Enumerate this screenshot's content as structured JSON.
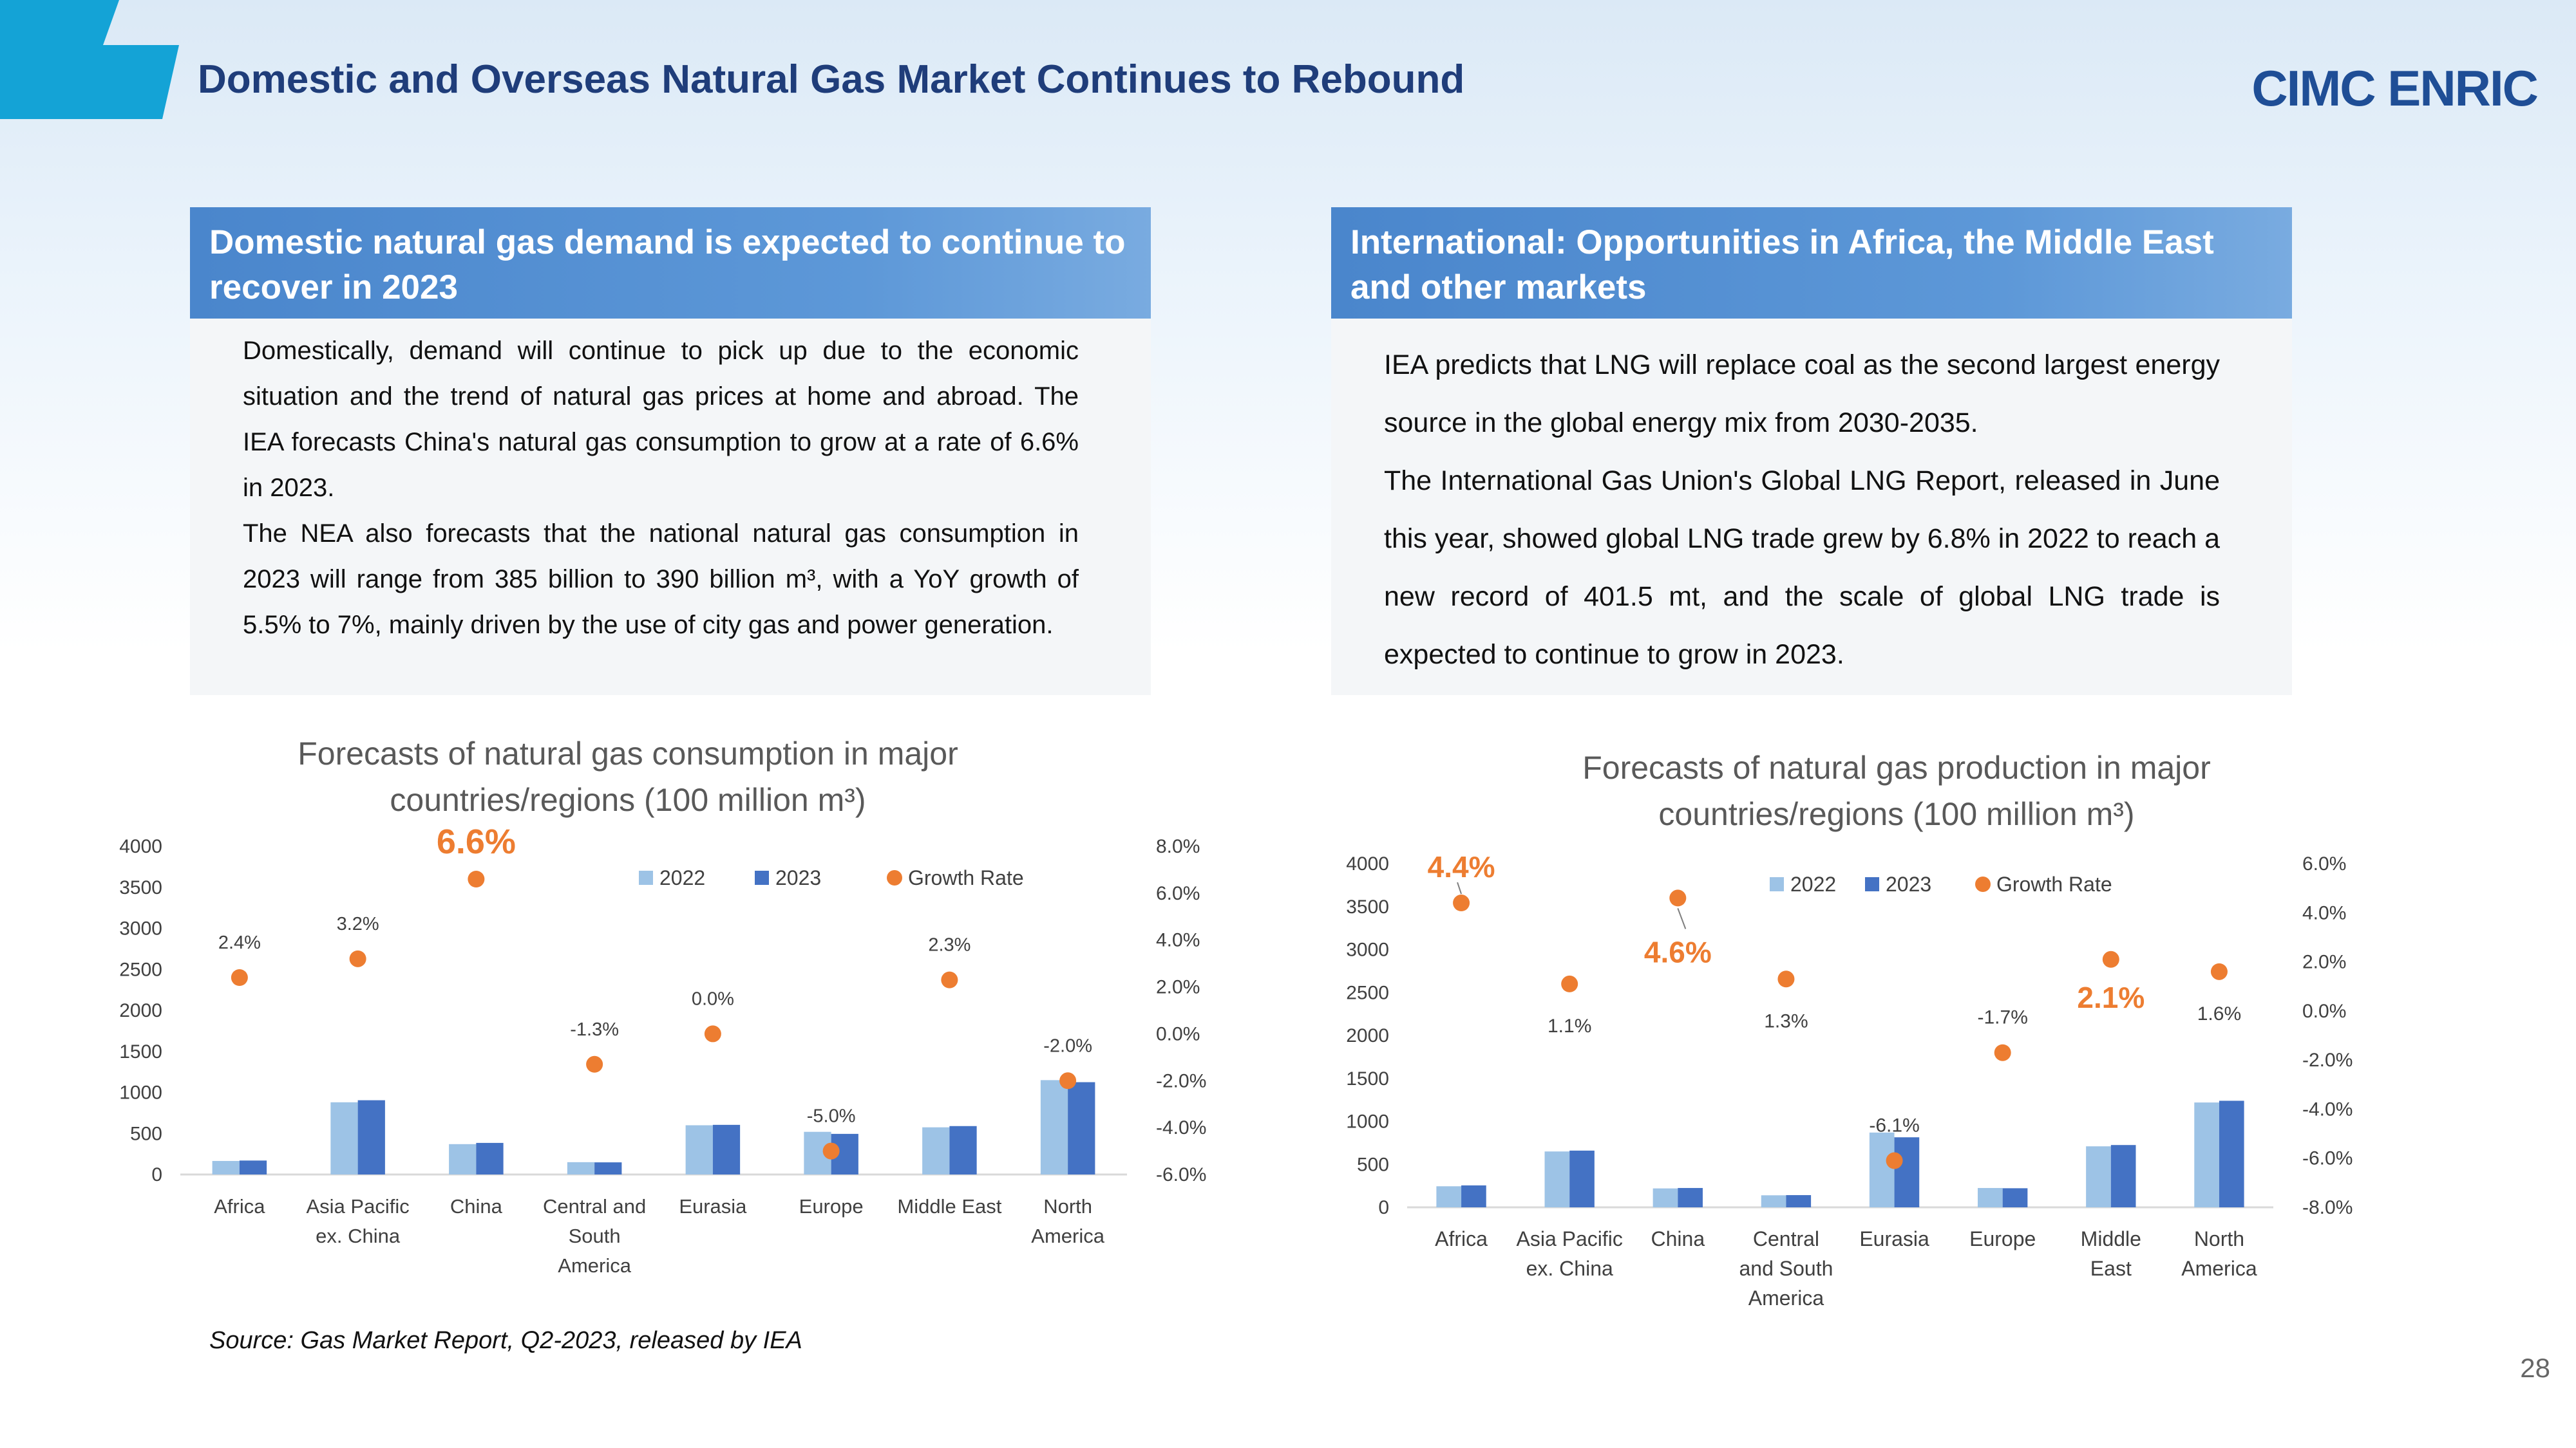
{
  "header": {
    "title": "Domestic and Overseas Natural Gas Market Continues to Rebound",
    "logo_text": "CIMC ENRIC"
  },
  "left_panel": {
    "heading": "Domestic natural gas demand is expected to continue to recover in 2023",
    "paragraphs": [
      "Domestically, demand will continue to pick up due to the economic situation and the trend of natural gas prices at home and abroad. The IEA forecasts China's natural gas consumption to grow at a rate of 6.6% in 2023.",
      "The NEA also forecasts that the national natural gas consumption in 2023 will range from 385 billion to 390 billion m³, with a YoY growth of 5.5% to 7%, mainly driven by the use of city gas and power generation."
    ]
  },
  "right_panel": {
    "heading": "International: Opportunities in Africa, the Middle East and other markets",
    "paragraphs": [
      "IEA predicts that LNG will replace coal as the second largest energy source in the global energy mix from 2030-2035.",
      "The International Gas Union's Global LNG Report, released in June this year, showed global LNG trade grew by 6.8% in 2022 to reach a new record of 401.5 mt, and the scale of global LNG trade is expected to continue to grow in 2023."
    ]
  },
  "footer": {
    "source": "Source: Gas Market Report, Q2-2023, released by IEA",
    "page_number": "28"
  },
  "colors": {
    "bar_2022": "#9dc3e6",
    "bar_2023": "#4472c4",
    "growth": "#ed7d31",
    "title_blue": "#1f3d7a",
    "panel_blue": "#4a86cc"
  },
  "chart_data": [
    {
      "type": "bar",
      "title": "Forecasts of natural gas consumption in major countries/regions (100 million m³)",
      "legend": [
        "2022",
        "2023",
        "Growth Rate"
      ],
      "categories": [
        [
          "Africa"
        ],
        [
          "Asia Pacific",
          "ex. China"
        ],
        [
          "China"
        ],
        [
          "Central and",
          "South",
          "America"
        ],
        [
          "Eurasia"
        ],
        [
          "Europe"
        ],
        [
          "Middle East"
        ],
        [
          "North",
          "America"
        ]
      ],
      "series": [
        {
          "name": "2022",
          "values": [
            165,
            880,
            370,
            150,
            600,
            520,
            575,
            1150
          ]
        },
        {
          "name": "2023",
          "values": [
            170,
            905,
            385,
            148,
            605,
            495,
            590,
            1125
          ]
        },
        {
          "name": "Growth Rate",
          "values": [
            2.4,
            3.2,
            6.6,
            -1.3,
            0.0,
            -5.0,
            2.3,
            -2.0
          ]
        }
      ],
      "growth_labels": [
        "2.4%",
        "3.2%",
        "6.6%",
        "-1.3%",
        "0.0%",
        "-5.0%",
        "2.3%",
        "-2.0%"
      ],
      "highlight": [
        false,
        false,
        true,
        false,
        false,
        false,
        false,
        false
      ],
      "ylim": [
        0,
        4000
      ],
      "y_ticks": [
        "0",
        "500",
        "1000",
        "1500",
        "2000",
        "2500",
        "3000",
        "3500",
        "4000"
      ],
      "y2lim": [
        -6,
        8
      ],
      "y2_ticks": [
        "-6.0%",
        "-4.0%",
        "-2.0%",
        "0.0%",
        "2.0%",
        "4.0%",
        "6.0%",
        "8.0%"
      ]
    },
    {
      "type": "bar",
      "title": "Forecasts of natural gas production in major countries/regions (100 million m³)",
      "legend": [
        "2022",
        "2023",
        "Growth Rate"
      ],
      "categories": [
        [
          "Africa"
        ],
        [
          "Asia Pacific",
          "ex. China"
        ],
        [
          "China"
        ],
        [
          "Central",
          "and South",
          "America"
        ],
        [
          "Eurasia"
        ],
        [
          "Europe"
        ],
        [
          "Middle",
          "East"
        ],
        [
          "North",
          "America"
        ]
      ],
      "series": [
        {
          "name": "2022",
          "values": [
            245,
            650,
            220,
            140,
            870,
            225,
            710,
            1220
          ]
        },
        {
          "name": "2023",
          "values": [
            255,
            660,
            225,
            142,
            815,
            222,
            725,
            1240
          ]
        },
        {
          "name": "Growth Rate",
          "values": [
            4.4,
            1.1,
            4.6,
            1.3,
            -6.1,
            -1.7,
            2.1,
            1.6
          ]
        }
      ],
      "growth_labels": [
        "4.4%",
        "1.1%",
        "4.6%",
        "1.3%",
        "-6.1%",
        "-1.7%",
        "2.1%",
        "1.6%"
      ],
      "highlight": [
        true,
        false,
        true,
        false,
        false,
        false,
        true,
        false
      ],
      "ylim": [
        0,
        4000
      ],
      "y_ticks": [
        "0",
        "500",
        "1000",
        "1500",
        "2000",
        "2500",
        "3000",
        "3500",
        "4000"
      ],
      "y2lim": [
        -8,
        6
      ],
      "y2_ticks": [
        "-8.0%",
        "-6.0%",
        "-4.0%",
        "-2.0%",
        "0.0%",
        "2.0%",
        "4.0%",
        "6.0%"
      ]
    }
  ]
}
